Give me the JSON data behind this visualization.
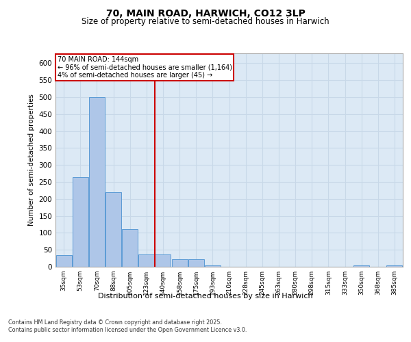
{
  "title_line1": "70, MAIN ROAD, HARWICH, CO12 3LP",
  "title_line2": "Size of property relative to semi-detached houses in Harwich",
  "xlabel": "Distribution of semi-detached houses by size in Harwich",
  "ylabel": "Number of semi-detached properties",
  "categories": [
    "35sqm",
    "53sqm",
    "70sqm",
    "88sqm",
    "105sqm",
    "123sqm",
    "140sqm",
    "158sqm",
    "175sqm",
    "193sqm",
    "210sqm",
    "228sqm",
    "245sqm",
    "263sqm",
    "280sqm",
    "298sqm",
    "315sqm",
    "333sqm",
    "350sqm",
    "368sqm",
    "385sqm"
  ],
  "values": [
    35,
    265,
    500,
    220,
    110,
    37,
    37,
    22,
    22,
    5,
    0,
    0,
    0,
    0,
    0,
    0,
    0,
    0,
    5,
    0,
    5
  ],
  "bar_color": "#aec6e8",
  "bar_edge_color": "#5b9bd5",
  "grid_color": "#c8d8e8",
  "background_color": "#dce9f5",
  "vline_x_index": 6,
  "vline_color": "#cc0000",
  "annotation_text": "70 MAIN ROAD: 144sqm\n← 96% of semi-detached houses are smaller (1,164)\n4% of semi-detached houses are larger (45) →",
  "annotation_box_color": "#ffffff",
  "annotation_box_edge": "#cc0000",
  "footer_text": "Contains HM Land Registry data © Crown copyright and database right 2025.\nContains public sector information licensed under the Open Government Licence v3.0.",
  "ylim": [
    0,
    630
  ],
  "yticks": [
    0,
    50,
    100,
    150,
    200,
    250,
    300,
    350,
    400,
    450,
    500,
    550,
    600
  ]
}
